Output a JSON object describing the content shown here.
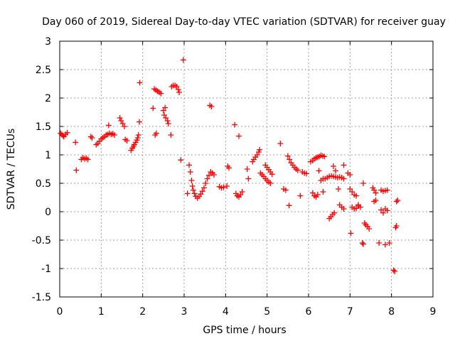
{
  "chart_data": {
    "type": "scatter",
    "title": "Day 060 of 2019, Sidereal Day-to-day VTEC variation (SDTVAR) for receiver guay",
    "xlabel": "GPS time / hours",
    "ylabel": "SDTVAR / TECUs",
    "xlim": [
      0,
      9
    ],
    "ylim": [
      -1.5,
      3
    ],
    "xticks": [
      0,
      1,
      2,
      3,
      4,
      5,
      6,
      7,
      8,
      9
    ],
    "yticks": [
      -1.5,
      -1,
      -0.5,
      0,
      0.5,
      1,
      1.5,
      2,
      2.5,
      3
    ],
    "xtick_labels": [
      "0",
      "1",
      "2",
      "3",
      "4",
      "5",
      "6",
      "7",
      "8",
      "9"
    ],
    "ytick_labels": [
      "-1.5",
      "-1",
      "-0.5",
      "0",
      "0.5",
      "1",
      "1.5",
      "2",
      "2.5",
      "3"
    ],
    "grid": true,
    "marker": "+",
    "color": "#ff0000",
    "series": [
      {
        "name": "SDTVAR",
        "points": [
          [
            0.02,
            1.38
          ],
          [
            0.05,
            1.36
          ],
          [
            0.08,
            1.34
          ],
          [
            0.1,
            1.32
          ],
          [
            0.14,
            1.36
          ],
          [
            0.18,
            1.39
          ],
          [
            0.38,
            1.22
          ],
          [
            0.4,
            0.73
          ],
          [
            0.52,
            0.92
          ],
          [
            0.56,
            0.95
          ],
          [
            0.6,
            0.93
          ],
          [
            0.64,
            0.94
          ],
          [
            0.68,
            0.92
          ],
          [
            0.75,
            1.32
          ],
          [
            0.78,
            1.3
          ],
          [
            0.88,
            1.18
          ],
          [
            0.92,
            1.2
          ],
          [
            0.96,
            1.24
          ],
          [
            1.0,
            1.28
          ],
          [
            1.04,
            1.3
          ],
          [
            1.08,
            1.32
          ],
          [
            1.12,
            1.35
          ],
          [
            1.16,
            1.36
          ],
          [
            1.2,
            1.38
          ],
          [
            1.24,
            1.36
          ],
          [
            1.28,
            1.37
          ],
          [
            1.32,
            1.35
          ],
          [
            1.18,
            1.52
          ],
          [
            1.45,
            1.65
          ],
          [
            1.48,
            1.6
          ],
          [
            1.52,
            1.55
          ],
          [
            1.56,
            1.5
          ],
          [
            1.58,
            1.27
          ],
          [
            1.62,
            1.25
          ],
          [
            1.72,
            1.08
          ],
          [
            1.75,
            1.12
          ],
          [
            1.78,
            1.15
          ],
          [
            1.8,
            1.18
          ],
          [
            1.83,
            1.22
          ],
          [
            1.86,
            1.26
          ],
          [
            1.88,
            1.3
          ],
          [
            1.9,
            1.35
          ],
          [
            1.92,
            1.58
          ],
          [
            1.93,
            2.27
          ],
          [
            2.25,
            1.82
          ],
          [
            2.3,
            1.35
          ],
          [
            2.33,
            1.38
          ],
          [
            2.28,
            2.16
          ],
          [
            2.32,
            2.14
          ],
          [
            2.36,
            2.12
          ],
          [
            2.4,
            2.1
          ],
          [
            2.44,
            2.08
          ],
          [
            2.5,
            1.78
          ],
          [
            2.54,
            1.83
          ],
          [
            2.52,
            1.7
          ],
          [
            2.56,
            1.65
          ],
          [
            2.6,
            1.6
          ],
          [
            2.62,
            1.55
          ],
          [
            2.68,
            1.35
          ],
          [
            2.7,
            2.2
          ],
          [
            2.74,
            2.22
          ],
          [
            2.78,
            2.22
          ],
          [
            2.82,
            2.2
          ],
          [
            2.86,
            2.15
          ],
          [
            2.88,
            2.1
          ],
          [
            2.92,
            0.91
          ],
          [
            2.98,
            2.67
          ],
          [
            3.08,
            0.32
          ],
          [
            3.12,
            0.82
          ],
          [
            3.15,
            0.7
          ],
          [
            3.18,
            0.55
          ],
          [
            3.2,
            0.45
          ],
          [
            3.22,
            0.38
          ],
          [
            3.25,
            0.32
          ],
          [
            3.28,
            0.27
          ],
          [
            3.32,
            0.24
          ],
          [
            3.36,
            0.27
          ],
          [
            3.4,
            0.31
          ],
          [
            3.44,
            0.36
          ],
          [
            3.48,
            0.42
          ],
          [
            3.52,
            0.5
          ],
          [
            3.56,
            0.58
          ],
          [
            3.6,
            0.64
          ],
          [
            3.64,
            0.7
          ],
          [
            3.68,
            0.68
          ],
          [
            3.72,
            0.65
          ],
          [
            3.62,
            1.87
          ],
          [
            3.66,
            1.85
          ],
          [
            3.85,
            0.44
          ],
          [
            3.9,
            0.42
          ],
          [
            3.95,
            0.43
          ],
          [
            4.05,
            0.8
          ],
          [
            4.08,
            0.77
          ],
          [
            4.03,
            0.45
          ],
          [
            4.22,
            1.53
          ],
          [
            4.32,
            1.33
          ],
          [
            4.25,
            0.32
          ],
          [
            4.28,
            0.28
          ],
          [
            4.32,
            0.26
          ],
          [
            4.36,
            0.3
          ],
          [
            4.4,
            0.35
          ],
          [
            4.52,
            0.75
          ],
          [
            4.55,
            0.58
          ],
          [
            4.65,
            0.88
          ],
          [
            4.68,
            0.92
          ],
          [
            4.72,
            0.96
          ],
          [
            4.76,
            1.0
          ],
          [
            4.8,
            1.05
          ],
          [
            4.82,
            1.09
          ],
          [
            4.84,
            0.68
          ],
          [
            4.88,
            0.65
          ],
          [
            4.92,
            0.62
          ],
          [
            4.96,
            0.58
          ],
          [
            5.0,
            0.55
          ],
          [
            5.04,
            0.52
          ],
          [
            5.08,
            0.5
          ],
          [
            4.96,
            0.82
          ],
          [
            5.0,
            0.78
          ],
          [
            5.04,
            0.74
          ],
          [
            5.08,
            0.7
          ],
          [
            5.12,
            0.66
          ],
          [
            5.32,
            1.2
          ],
          [
            5.4,
            0.4
          ],
          [
            5.45,
            0.38
          ],
          [
            5.5,
            0.98
          ],
          [
            5.54,
            0.92
          ],
          [
            5.58,
            0.86
          ],
          [
            5.62,
            0.82
          ],
          [
            5.66,
            0.78
          ],
          [
            5.7,
            0.75
          ],
          [
            5.74,
            0.73
          ],
          [
            5.53,
            0.11
          ],
          [
            5.8,
            0.28
          ],
          [
            5.85,
            0.7
          ],
          [
            5.9,
            0.68
          ],
          [
            5.95,
            0.67
          ],
          [
            6.05,
            0.88
          ],
          [
            6.1,
            0.9
          ],
          [
            6.14,
            0.93
          ],
          [
            6.18,
            0.95
          ],
          [
            6.22,
            0.96
          ],
          [
            6.26,
            0.97
          ],
          [
            6.3,
            0.99
          ],
          [
            6.34,
            0.98
          ],
          [
            6.38,
            0.97
          ],
          [
            6.1,
            0.33
          ],
          [
            6.14,
            0.28
          ],
          [
            6.18,
            0.26
          ],
          [
            6.22,
            0.3
          ],
          [
            6.25,
            0.72
          ],
          [
            6.3,
            0.55
          ],
          [
            6.35,
            0.58
          ],
          [
            6.35,
            0.35
          ],
          [
            6.4,
            0.58
          ],
          [
            6.45,
            0.6
          ],
          [
            6.5,
            0.62
          ],
          [
            6.55,
            0.63
          ],
          [
            6.6,
            0.62
          ],
          [
            6.65,
            0.61
          ],
          [
            6.7,
            0.6
          ],
          [
            6.75,
            0.61
          ],
          [
            6.8,
            0.6
          ],
          [
            6.85,
            0.58
          ],
          [
            6.5,
            -0.12
          ],
          [
            6.54,
            -0.09
          ],
          [
            6.58,
            -0.05
          ],
          [
            6.62,
            -0.02
          ],
          [
            6.6,
            0.8
          ],
          [
            6.65,
            0.72
          ],
          [
            6.72,
            0.4
          ],
          [
            6.75,
            0.12
          ],
          [
            6.8,
            0.08
          ],
          [
            6.85,
            0.05
          ],
          [
            6.85,
            0.82
          ],
          [
            6.95,
            0.68
          ],
          [
            7.0,
            0.65
          ],
          [
            7.02,
            -0.38
          ],
          [
            7.0,
            0.4
          ],
          [
            7.05,
            0.35
          ],
          [
            7.1,
            0.3
          ],
          [
            7.15,
            0.28
          ],
          [
            7.05,
            0.08
          ],
          [
            7.1,
            0.05
          ],
          [
            7.15,
            0.06
          ],
          [
            7.2,
            0.1
          ],
          [
            7.2,
            0.12
          ],
          [
            7.25,
            0.08
          ],
          [
            7.3,
            -0.55
          ],
          [
            7.32,
            -0.57
          ],
          [
            7.32,
            0.5
          ],
          [
            7.35,
            -0.2
          ],
          [
            7.38,
            -0.23
          ],
          [
            7.42,
            -0.26
          ],
          [
            7.46,
            -0.3
          ],
          [
            7.55,
            0.42
          ],
          [
            7.58,
            0.38
          ],
          [
            7.62,
            0.33
          ],
          [
            7.58,
            0.18
          ],
          [
            7.62,
            0.2
          ],
          [
            7.7,
            -0.55
          ],
          [
            7.75,
            0.38
          ],
          [
            7.8,
            0.36
          ],
          [
            7.85,
            0.37
          ],
          [
            7.9,
            0.38
          ],
          [
            7.75,
            0.03
          ],
          [
            7.8,
            -0.02
          ],
          [
            7.85,
            0.05
          ],
          [
            7.9,
            0.02
          ],
          [
            7.85,
            -0.58
          ],
          [
            7.95,
            -0.55
          ],
          [
            8.05,
            -1.03
          ],
          [
            8.08,
            -1.05
          ],
          [
            8.1,
            -0.28
          ],
          [
            8.12,
            -0.25
          ],
          [
            8.12,
            0.18
          ],
          [
            8.15,
            0.2
          ]
        ]
      }
    ]
  }
}
